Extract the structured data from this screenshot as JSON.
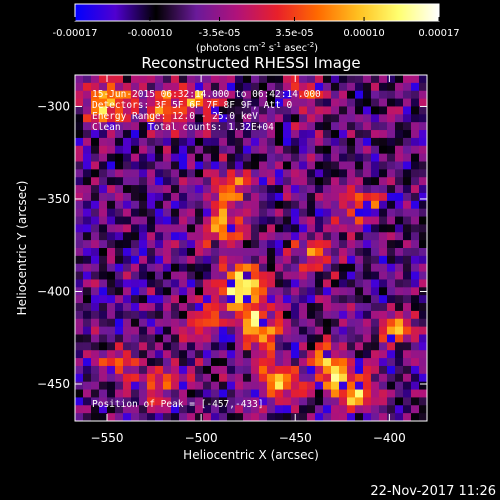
{
  "chart_data": {
    "type": "heatmap",
    "title": "Reconstructed RHESSI Image",
    "xlabel": "Heliocentric X (arcsec)",
    "ylabel": "Heliocentric Y (arcsec)",
    "xlim": [
      -567,
      -380
    ],
    "ylim": [
      -470,
      -283
    ],
    "x_ticks": [
      -550,
      -500,
      -450,
      -400
    ],
    "y_ticks": [
      -300,
      -350,
      -400,
      -450
    ],
    "colorbar": {
      "range": [
        -0.00017,
        0.00017
      ],
      "tick_values": [
        -0.00017,
        -0.0001,
        -3.5e-05,
        3.5e-05,
        0.0001,
        0.00017
      ],
      "tick_labels": [
        "-0.00017",
        "-0.00010",
        "-3.5e-05",
        "3.5e-05",
        "0.00010",
        "0.00017"
      ],
      "unit_prefix": "(photons cm",
      "unit_sup1": "-2",
      "unit_mid": " s",
      "unit_sup2": "-1",
      "unit_mid2": " asec",
      "unit_sup3": "-2",
      "unit_suffix": ")",
      "colors": [
        "#0000ff",
        "#5000d0",
        "#000000",
        "#6a1a9a",
        "#b0127a",
        "#e8202a",
        "#ff6a00",
        "#ffc020",
        "#ffff70",
        "#ffffff"
      ]
    },
    "annotations": {
      "time_range": "15-Jun-2015 06:32:14.000 to 06:42:14.000",
      "detectors": "Detectors: 3F 5F 6F 7F 8F 9F, Att 0",
      "energy": "Energy Range: 12.0 - 25.0 keV",
      "clean_label": "Clean",
      "total_counts": "Total counts: 1.32E+04",
      "peak": "Position of Peak = [-457,-433]"
    },
    "sources": [
      {
        "x": -478,
        "y": -398,
        "intensity": 1.0
      },
      {
        "x": -470,
        "y": -420,
        "intensity": 0.85
      },
      {
        "x": -460,
        "y": -448,
        "intensity": 0.8
      },
      {
        "x": -430,
        "y": -440,
        "intensity": 0.7
      },
      {
        "x": -420,
        "y": -455,
        "intensity": 0.7
      },
      {
        "x": -490,
        "y": -365,
        "intensity": 0.55
      },
      {
        "x": -485,
        "y": -345,
        "intensity": 0.55
      },
      {
        "x": -520,
        "y": -300,
        "intensity": 0.55
      },
      {
        "x": -500,
        "y": -295,
        "intensity": 0.5
      },
      {
        "x": -545,
        "y": -295,
        "intensity": 0.45
      },
      {
        "x": -555,
        "y": -300,
        "intensity": 0.45
      },
      {
        "x": -415,
        "y": -355,
        "intensity": 0.55
      },
      {
        "x": -440,
        "y": -380,
        "intensity": 0.5
      },
      {
        "x": -395,
        "y": -420,
        "intensity": 0.5
      },
      {
        "x": -545,
        "y": -440,
        "intensity": 0.45
      },
      {
        "x": -520,
        "y": -450,
        "intensity": 0.45
      },
      {
        "x": -500,
        "y": -415,
        "intensity": 0.45
      },
      {
        "x": -445,
        "y": -295,
        "intensity": 0.4
      }
    ]
  },
  "footer": {
    "date": "22-Nov-2017 11:26"
  }
}
